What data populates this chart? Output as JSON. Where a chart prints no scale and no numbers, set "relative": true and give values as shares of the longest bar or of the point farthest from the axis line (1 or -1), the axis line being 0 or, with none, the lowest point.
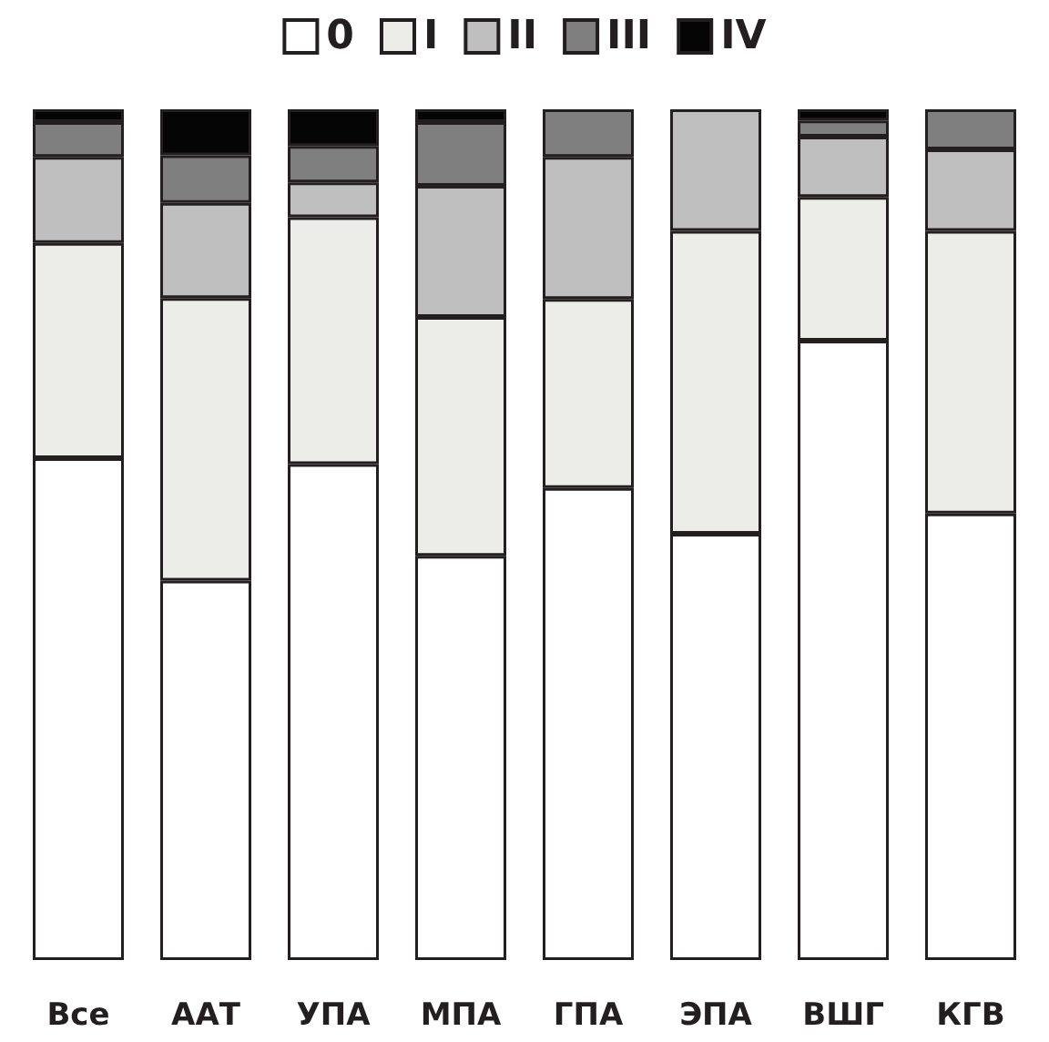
{
  "chart_data": {
    "type": "bar",
    "stacked": true,
    "relative": true,
    "legend": "top",
    "categories": [
      "Все",
      "ААТ",
      "УПА",
      "МПА",
      "ГПА",
      "ЭПА",
      "ВШГ",
      "КГВ"
    ],
    "series": [
      {
        "name": "0",
        "color": "#ffffff",
        "values": [
          0.59,
          0.446,
          0.583,
          0.475,
          0.555,
          0.501,
          0.728,
          0.525
        ]
      },
      {
        "name": "I",
        "color": "#ecece8",
        "values": [
          0.253,
          0.332,
          0.29,
          0.281,
          0.222,
          0.356,
          0.169,
          0.332
        ]
      },
      {
        "name": "II",
        "color": "#bfbfbf",
        "values": [
          0.101,
          0.112,
          0.041,
          0.154,
          0.167,
          0.143,
          0.071,
          0.096
        ]
      },
      {
        "name": "III",
        "color": "#7f7f7f",
        "values": [
          0.041,
          0.056,
          0.043,
          0.075,
          0.056,
          0,
          0.019,
          0.047
        ]
      },
      {
        "name": "IV",
        "color": "#050505",
        "values": [
          0.015,
          0.054,
          0.043,
          0.015,
          0,
          0,
          0.013,
          0
        ]
      }
    ]
  }
}
